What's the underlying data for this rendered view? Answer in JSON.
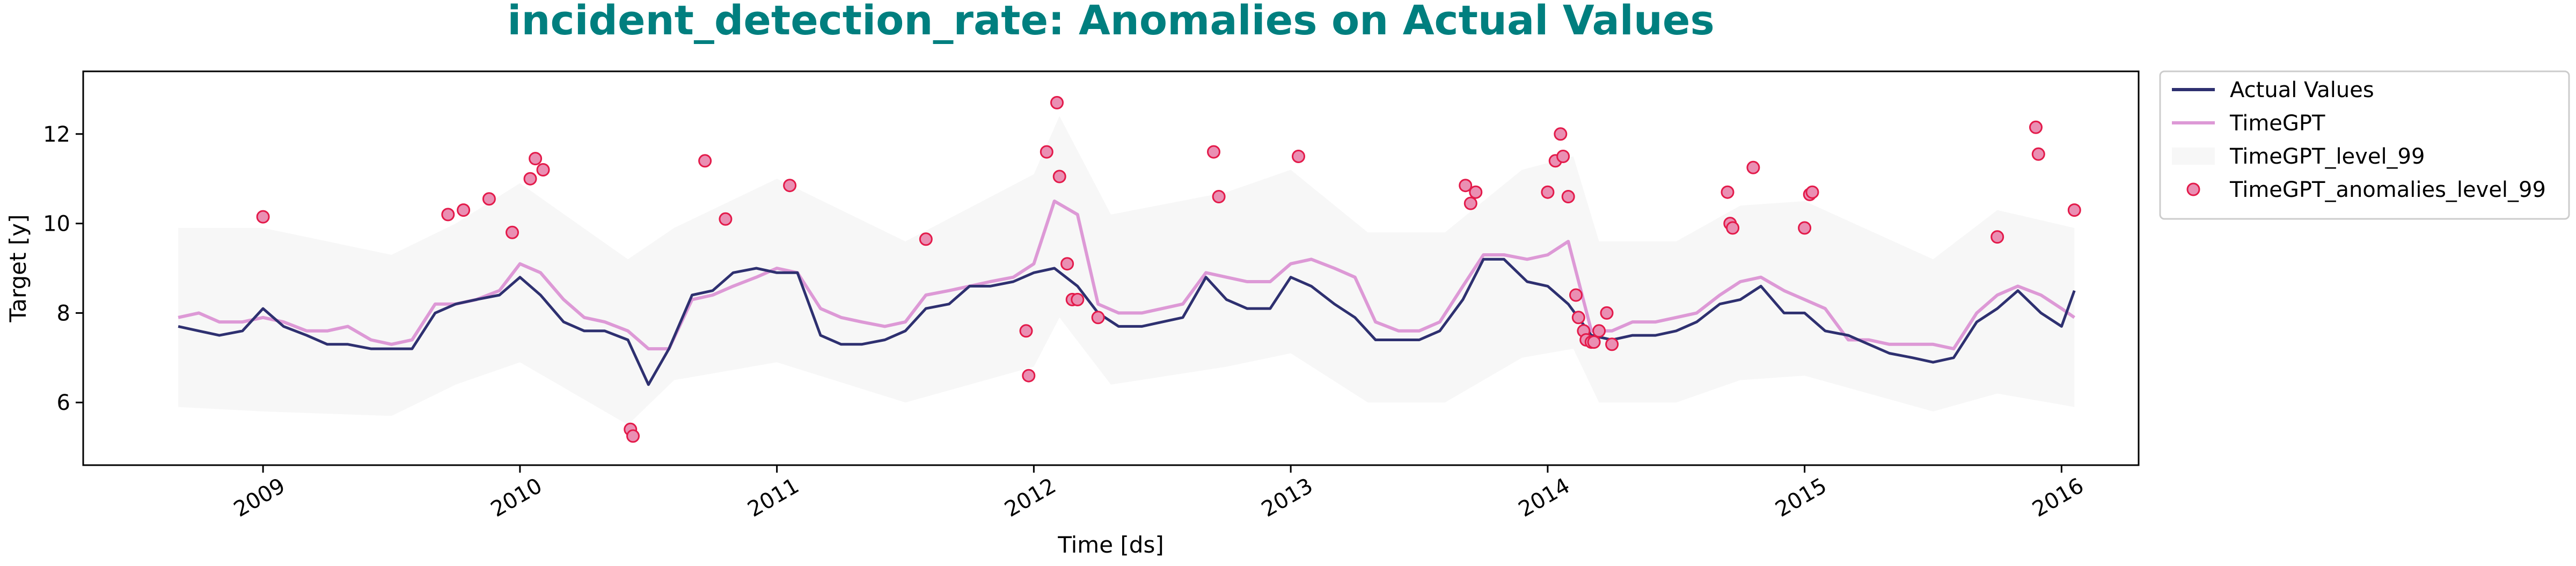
{
  "chart_data": {
    "type": "line",
    "title": "incident_detection_rate: Anomalies on Actual Values",
    "title_color": "#007f7f",
    "xlabel": "Time [ds]",
    "ylabel": "Target [y]",
    "xlim": [
      2008.3,
      2016.3
    ],
    "ylim": [
      4.6,
      13.4
    ],
    "x_ticks": [
      2009,
      2010,
      2011,
      2012,
      2013,
      2014,
      2015,
      2016
    ],
    "x_tick_labels": [
      "2009",
      "2010",
      "2011",
      "2012",
      "2013",
      "2014",
      "2015",
      "2016"
    ],
    "y_ticks": [
      6,
      8,
      10,
      12
    ],
    "y_tick_labels": [
      "6",
      "8",
      "10",
      "12"
    ],
    "grid": false,
    "legend_position": "outside-top-right",
    "legend": [
      {
        "label": "Actual Values",
        "kind": "line",
        "color": "#2e3070"
      },
      {
        "label": "TimeGPT",
        "kind": "line",
        "color": "#dd99d6"
      },
      {
        "label": "TimeGPT_level_99",
        "kind": "band",
        "color": "#f7f7f7"
      },
      {
        "label": "TimeGPT_anomalies_level_99",
        "kind": "marker",
        "color": "#ea8fb3",
        "edge": "#e31a4a"
      }
    ],
    "series": [
      {
        "name": "Actual Values",
        "color": "#2e3070",
        "x": [
          2008.67,
          2008.75,
          2008.83,
          2008.92,
          2009.0,
          2009.08,
          2009.17,
          2009.25,
          2009.33,
          2009.42,
          2009.5,
          2009.58,
          2009.67,
          2009.75,
          2009.83,
          2009.92,
          2010.0,
          2010.08,
          2010.17,
          2010.25,
          2010.33,
          2010.42,
          2010.5,
          2010.58,
          2010.67,
          2010.75,
          2010.83,
          2010.92,
          2011.0,
          2011.08,
          2011.17,
          2011.25,
          2011.33,
          2011.42,
          2011.5,
          2011.58,
          2011.67,
          2011.75,
          2011.83,
          2011.92,
          2012.0,
          2012.08,
          2012.17,
          2012.25,
          2012.33,
          2012.42,
          2012.5,
          2012.58,
          2012.67,
          2012.75,
          2012.83,
          2012.92,
          2013.0,
          2013.08,
          2013.17,
          2013.25,
          2013.33,
          2013.42,
          2013.5,
          2013.58,
          2013.67,
          2013.75,
          2013.83,
          2013.92,
          2014.0,
          2014.08,
          2014.17,
          2014.25,
          2014.33,
          2014.42,
          2014.5,
          2014.58,
          2014.67,
          2014.75,
          2014.83,
          2014.92,
          2015.0,
          2015.08,
          2015.17,
          2015.25,
          2015.33,
          2015.42,
          2015.5,
          2015.58,
          2015.67,
          2015.75,
          2015.83,
          2015.92,
          2016.0,
          2016.05
        ],
        "y": [
          7.7,
          7.6,
          7.5,
          7.6,
          8.1,
          7.7,
          7.5,
          7.3,
          7.3,
          7.2,
          7.2,
          7.2,
          8.0,
          8.2,
          8.3,
          8.4,
          8.8,
          8.4,
          7.8,
          7.6,
          7.6,
          7.4,
          6.4,
          7.2,
          8.4,
          8.5,
          8.9,
          9.0,
          8.9,
          8.9,
          7.5,
          7.3,
          7.3,
          7.4,
          7.6,
          8.1,
          8.2,
          8.6,
          8.6,
          8.7,
          8.9,
          9.0,
          8.6,
          8.0,
          7.7,
          7.7,
          7.8,
          7.9,
          8.8,
          8.3,
          8.1,
          8.1,
          8.8,
          8.6,
          8.2,
          7.9,
          7.4,
          7.4,
          7.4,
          7.6,
          8.3,
          9.2,
          9.2,
          8.7,
          8.6,
          8.2,
          7.5,
          7.4,
          7.5,
          7.5,
          7.6,
          7.8,
          8.2,
          8.3,
          8.6,
          8.0,
          8.0,
          7.6,
          7.5,
          7.3,
          7.1,
          7.0,
          6.9,
          7.0,
          7.8,
          8.1,
          8.5,
          8.0,
          7.7,
          8.5
        ]
      },
      {
        "name": "TimeGPT",
        "color": "#dd99d6",
        "x": [
          2008.67,
          2008.75,
          2008.83,
          2008.92,
          2009.0,
          2009.08,
          2009.17,
          2009.25,
          2009.33,
          2009.42,
          2009.5,
          2009.58,
          2009.67,
          2009.75,
          2009.83,
          2009.92,
          2010.0,
          2010.08,
          2010.17,
          2010.25,
          2010.33,
          2010.42,
          2010.5,
          2010.58,
          2010.67,
          2010.75,
          2010.83,
          2010.92,
          2011.0,
          2011.08,
          2011.17,
          2011.25,
          2011.33,
          2011.42,
          2011.5,
          2011.58,
          2011.67,
          2011.75,
          2011.83,
          2011.92,
          2012.0,
          2012.08,
          2012.17,
          2012.25,
          2012.33,
          2012.42,
          2012.5,
          2012.58,
          2012.67,
          2012.75,
          2012.83,
          2012.92,
          2013.0,
          2013.08,
          2013.17,
          2013.25,
          2013.33,
          2013.42,
          2013.5,
          2013.58,
          2013.67,
          2013.75,
          2013.83,
          2013.92,
          2014.0,
          2014.08,
          2014.17,
          2014.25,
          2014.33,
          2014.42,
          2014.5,
          2014.58,
          2014.67,
          2014.75,
          2014.83,
          2014.92,
          2015.0,
          2015.08,
          2015.17,
          2015.25,
          2015.33,
          2015.42,
          2015.5,
          2015.58,
          2015.67,
          2015.75,
          2015.83,
          2015.92,
          2016.0,
          2016.05
        ],
        "y": [
          7.9,
          8.0,
          7.8,
          7.8,
          7.9,
          7.8,
          7.6,
          7.6,
          7.7,
          7.4,
          7.3,
          7.4,
          8.2,
          8.2,
          8.3,
          8.5,
          9.1,
          8.9,
          8.3,
          7.9,
          7.8,
          7.6,
          7.2,
          7.2,
          8.3,
          8.4,
          8.6,
          8.8,
          9.0,
          8.9,
          8.1,
          7.9,
          7.8,
          7.7,
          7.8,
          8.4,
          8.5,
          8.6,
          8.7,
          8.8,
          9.1,
          10.5,
          10.2,
          8.2,
          8.0,
          8.0,
          8.1,
          8.2,
          8.9,
          8.8,
          8.7,
          8.7,
          9.1,
          9.2,
          9.0,
          8.8,
          7.8,
          7.6,
          7.6,
          7.8,
          8.6,
          9.3,
          9.3,
          9.2,
          9.3,
          9.6,
          7.6,
          7.6,
          7.8,
          7.8,
          7.9,
          8.0,
          8.4,
          8.7,
          8.8,
          8.5,
          8.3,
          8.1,
          7.4,
          7.4,
          7.3,
          7.3,
          7.3,
          7.2,
          8.0,
          8.4,
          8.6,
          8.4,
          8.1,
          7.9
        ]
      },
      {
        "name": "TimeGPT_level_99",
        "color": "#f7f7f7",
        "x": [
          2008.67,
          2009.0,
          2009.5,
          2009.75,
          2010.0,
          2010.42,
          2010.6,
          2011.0,
          2011.5,
          2012.0,
          2012.1,
          2012.3,
          2012.75,
          2013.0,
          2013.3,
          2013.6,
          2013.9,
          2014.1,
          2014.2,
          2014.5,
          2014.75,
          2015.0,
          2015.5,
          2015.75,
          2016.05
        ],
        "lower": [
          5.9,
          5.8,
          5.7,
          6.4,
          6.9,
          5.5,
          6.5,
          6.9,
          6.0,
          6.8,
          7.9,
          6.4,
          6.8,
          7.1,
          6.0,
          6.0,
          7.0,
          7.2,
          6.0,
          6.0,
          6.5,
          6.6,
          5.8,
          6.2,
          5.9
        ],
        "upper": [
          9.9,
          9.9,
          9.3,
          10.0,
          10.9,
          9.2,
          9.9,
          11.0,
          9.6,
          11.1,
          12.4,
          10.2,
          10.7,
          11.2,
          9.8,
          9.8,
          11.2,
          11.5,
          9.6,
          9.6,
          10.4,
          10.5,
          9.2,
          10.3,
          9.9
        ]
      }
    ],
    "anomalies": {
      "name": "TimeGPT_anomalies_level_99",
      "x": [
        2009.0,
        2009.72,
        2009.78,
        2009.88,
        2009.97,
        2010.04,
        2010.06,
        2010.09,
        2010.43,
        2010.44,
        2010.72,
        2010.8,
        2011.05,
        2011.58,
        2011.97,
        2011.98,
        2012.05,
        2012.09,
        2012.1,
        2012.13,
        2012.15,
        2012.17,
        2012.25,
        2012.7,
        2012.72,
        2013.03,
        2013.68,
        2013.7,
        2013.72,
        2014.0,
        2014.03,
        2014.05,
        2014.06,
        2014.08,
        2014.11,
        2014.12,
        2014.14,
        2014.15,
        2014.17,
        2014.18,
        2014.2,
        2014.23,
        2014.25,
        2014.7,
        2014.71,
        2014.72,
        2014.8,
        2015.0,
        2015.02,
        2015.03,
        2015.75,
        2015.9,
        2015.91,
        2016.05
      ],
      "y": [
        10.15,
        10.2,
        10.3,
        10.55,
        9.8,
        11.0,
        11.45,
        11.2,
        5.4,
        5.25,
        11.4,
        10.1,
        10.85,
        9.65,
        7.6,
        6.6,
        11.6,
        12.7,
        11.05,
        9.1,
        8.3,
        8.3,
        7.9,
        11.6,
        10.6,
        11.5,
        10.85,
        10.45,
        10.7,
        10.7,
        11.4,
        12.0,
        11.5,
        10.6,
        8.4,
        7.9,
        7.6,
        7.4,
        7.35,
        7.35,
        7.6,
        8.0,
        7.3,
        10.7,
        10.0,
        9.9,
        11.25,
        9.9,
        10.65,
        10.7,
        9.7,
        12.15,
        11.55,
        10.3
      ],
      "color": "#ea8fb3",
      "edge": "#e31a4a"
    }
  }
}
